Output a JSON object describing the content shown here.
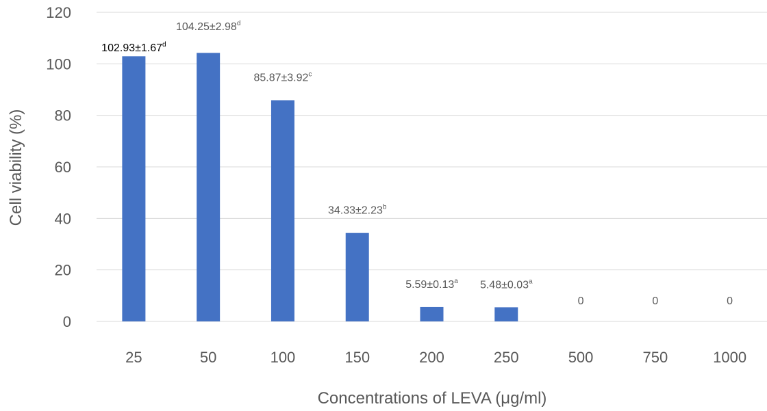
{
  "chart_data": {
    "type": "bar",
    "categories": [
      "25",
      "50",
      "100",
      "150",
      "200",
      "250",
      "500",
      "750",
      "1000"
    ],
    "values": [
      102.93,
      104.25,
      85.87,
      34.33,
      5.59,
      5.48,
      0,
      0,
      0
    ],
    "data_labels": [
      {
        "main": "102.93±1.67",
        "sup": "d"
      },
      {
        "main": "104.25±2.98",
        "sup": "d"
      },
      {
        "main": "85.87±3.92",
        "sup": "c"
      },
      {
        "main": "34.33±2.23",
        "sup": "b"
      },
      {
        "main": "5.59±0.13",
        "sup": "a"
      },
      {
        "main": "5.48±0.03",
        "sup": "a"
      },
      {
        "main": "0",
        "sup": ""
      },
      {
        "main": "0",
        "sup": ""
      },
      {
        "main": "0",
        "sup": ""
      }
    ],
    "y_ticks": [
      "0",
      "20",
      "40",
      "60",
      "80",
      "100",
      "120"
    ],
    "ylim": [
      0,
      120
    ],
    "xlabel": "Concentrations of LEVA (μg/ml)",
    "ylabel": "Cell viability (%)",
    "title": "",
    "grid": true,
    "legend": "none",
    "colors": {
      "bar": "#4472C4",
      "grid": "#D9D9D9",
      "text": "#595959"
    }
  }
}
